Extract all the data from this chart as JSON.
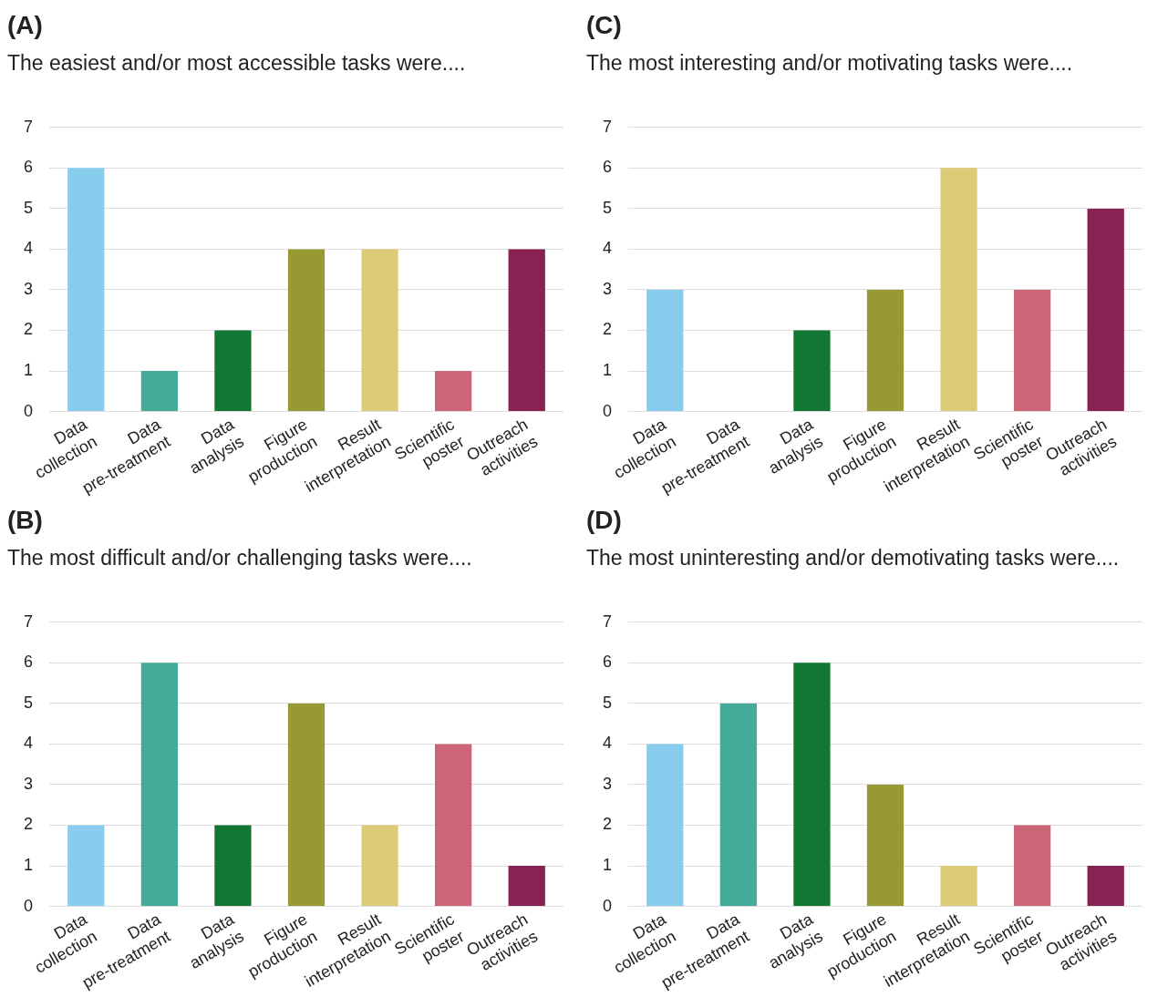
{
  "chart_data": [
    {
      "type": "bar",
      "title": "(A)",
      "subtitle": "The easiest and/or most accessible tasks were....",
      "categories": [
        "Data collection",
        "Data pre-treatment",
        "Data analysis",
        "Figure production",
        "Result interpretation",
        "Scientific poster",
        "Outreach activities"
      ],
      "values": [
        6,
        1,
        2,
        4,
        4,
        1,
        4
      ],
      "colors": [
        "#88ccee",
        "#44aa99",
        "#117733",
        "#999933",
        "#ddcc77",
        "#cc6677",
        "#882255"
      ],
      "ylim": [
        0,
        7
      ],
      "yticks": [
        0,
        1,
        2,
        3,
        4,
        5,
        6,
        7
      ],
      "grid": "y"
    },
    {
      "type": "bar",
      "title": "(C)",
      "subtitle": "The most interesting and/or motivating tasks were....",
      "categories": [
        "Data collection",
        "Data pre-treatment",
        "Data analysis",
        "Figure production",
        "Result interpretation",
        "Scientific poster",
        "Outreach activities"
      ],
      "values": [
        3,
        0,
        2,
        3,
        6,
        3,
        5
      ],
      "colors": [
        "#88ccee",
        "#44aa99",
        "#117733",
        "#999933",
        "#ddcc77",
        "#cc6677",
        "#882255"
      ],
      "ylim": [
        0,
        7
      ],
      "yticks": [
        0,
        1,
        2,
        3,
        4,
        5,
        6,
        7
      ],
      "grid": "y"
    },
    {
      "type": "bar",
      "title": "(B)",
      "subtitle": "The most difficult and/or challenging tasks were....",
      "categories": [
        "Data collection",
        "Data pre-treatment",
        "Data analysis",
        "Figure production",
        "Result interpretation",
        "Scientific poster",
        "Outreach activities"
      ],
      "values": [
        2,
        6,
        2,
        5,
        2,
        4,
        1
      ],
      "colors": [
        "#88ccee",
        "#44aa99",
        "#117733",
        "#999933",
        "#ddcc77",
        "#cc6677",
        "#882255"
      ],
      "ylim": [
        0,
        7
      ],
      "yticks": [
        0,
        1,
        2,
        3,
        4,
        5,
        6,
        7
      ],
      "grid": "y"
    },
    {
      "type": "bar",
      "title": "(D)",
      "subtitle": "The most uninteresting and/or demotivating tasks were....",
      "categories": [
        "Data collection",
        "Data pre-treatment",
        "Data analysis",
        "Figure production",
        "Result interpretation",
        "Scientific poster",
        "Outreach activities"
      ],
      "values": [
        4,
        5,
        6,
        3,
        1,
        2,
        1
      ],
      "colors": [
        "#88ccee",
        "#44aa99",
        "#117733",
        "#999933",
        "#ddcc77",
        "#cc6677",
        "#882255"
      ],
      "ylim": [
        0,
        7
      ],
      "yticks": [
        0,
        1,
        2,
        3,
        4,
        5,
        6,
        7
      ],
      "grid": "y"
    }
  ]
}
